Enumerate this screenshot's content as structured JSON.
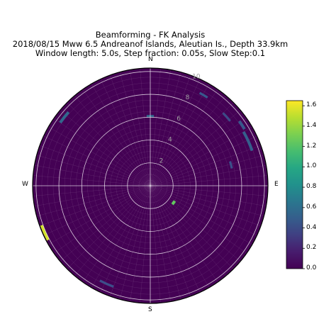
{
  "chart_data": {
    "type": "polar",
    "title_lines": [
      "Beamforming - FK Analysis",
      "2018/08/15 Mww 6.5 Andreanof Islands, Aleutian Is., Depth 33.9km",
      "Window length: 5.0s, Step fraction: 0.05s, Slow Step:0.1"
    ],
    "directions": {
      "north": "N",
      "east": "E",
      "south": "S",
      "west": "W"
    },
    "radial_ticks": [
      "2",
      "4",
      "6",
      "8",
      "10"
    ],
    "radial_tick_values": [
      2,
      4,
      6,
      8,
      10
    ],
    "radial_max": 10.3,
    "colorbar": {
      "ticks": [
        "0.0",
        "0.2",
        "0.4",
        "0.6",
        "0.8",
        "1.0",
        "1.2",
        "1.4",
        "1.6"
      ],
      "tick_values": [
        0,
        0.2,
        0.4,
        0.6,
        0.8,
        1.0,
        1.2,
        1.4,
        1.6
      ],
      "min": 0.0,
      "max": 1.65
    },
    "colormap": "viridis",
    "background_value": 0.0,
    "grid": true,
    "cells": [
      {
        "name": "cell-north-6",
        "azimuth_from": -3,
        "azimuth_to": 3,
        "slow_from": 6.0,
        "slow_to": 6.2,
        "value": 0.55
      },
      {
        "name": "cell-nne-11",
        "azimuth_from": 28,
        "azimuth_to": 33,
        "slow_from": 9.1,
        "slow_to": 9.3,
        "value": 0.45
      },
      {
        "name": "cell-ne-9",
        "azimuth_from": 45,
        "azimuth_to": 51,
        "slow_from": 8.9,
        "slow_to": 9.1,
        "value": 0.38
      },
      {
        "name": "cell-ene-10",
        "azimuth_from": 54,
        "azimuth_to": 59,
        "slow_from": 9.5,
        "slow_to": 9.75,
        "value": 0.45
      },
      {
        "name": "cell-ene-12",
        "azimuth_from": 60,
        "azimuth_to": 71,
        "slow_from": 9.3,
        "slow_to": 9.55,
        "value": 0.5
      },
      {
        "name": "cell-ene-7",
        "azimuth_from": 73,
        "azimuth_to": 78,
        "slow_from": 7.2,
        "slow_to": 7.4,
        "value": 0.4
      },
      {
        "name": "cell-se-2",
        "azimuth_from": 122,
        "azimuth_to": 130,
        "slow_from": 2.4,
        "slow_to": 2.65,
        "value": 1.25
      },
      {
        "name": "cell-ssw-10",
        "azimuth_from": 200,
        "azimuth_to": 208,
        "slow_from": 9.3,
        "slow_to": 9.5,
        "value": 0.4
      },
      {
        "name": "cell-wsw-11",
        "azimuth_from": 242,
        "azimuth_to": 250,
        "slow_from": 10.0,
        "slow_to": 10.25,
        "value": 1.55
      },
      {
        "name": "cell-nw-10",
        "azimuth_from": 305,
        "azimuth_to": 312,
        "slow_from": 9.5,
        "slow_to": 9.75,
        "value": 0.55
      }
    ]
  }
}
